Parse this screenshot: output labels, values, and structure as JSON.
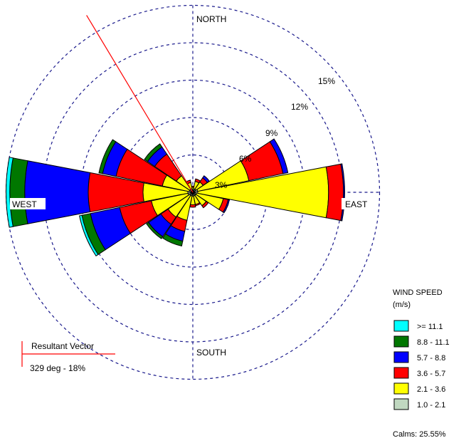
{
  "chart_data": {
    "type": "wind-rose",
    "directions": [
      {
        "bearing": 0,
        "cumulative": [
          0.2,
          0.4,
          0.5
        ]
      },
      {
        "bearing": 22.5,
        "cumulative": [
          0.3,
          0.9,
          1.1
        ]
      },
      {
        "bearing": 45,
        "cumulative": [
          0.3,
          1.0,
          1.4,
          1.6
        ]
      },
      {
        "bearing": 67.5,
        "cumulative": [
          0.4,
          4.6,
          7.4,
          7.8
        ]
      },
      {
        "bearing": 90,
        "cumulative": [
          0.4,
          10.9,
          12.1,
          12.2
        ]
      },
      {
        "bearing": 112.5,
        "cumulative": [
          0.3,
          2.5,
          2.9,
          3.0
        ]
      },
      {
        "bearing": 135,
        "cumulative": [
          0.3,
          1.3,
          1.5
        ]
      },
      {
        "bearing": 157.5,
        "cumulative": [
          0.3,
          1.0,
          1.1
        ]
      },
      {
        "bearing": 180,
        "cumulative": [
          0.3,
          1.0,
          1.2
        ]
      },
      {
        "bearing": 202.5,
        "cumulative": [
          0.3,
          2.3,
          3.2,
          4.0,
          4.4
        ]
      },
      {
        "bearing": 225,
        "cumulative": [
          0.3,
          2.4,
          3.1,
          4.3,
          4.5
        ]
      },
      {
        "bearing": 247.5,
        "cumulative": [
          0.4,
          3.4,
          6.0,
          8.4,
          9.1,
          9.3
        ]
      },
      {
        "bearing": 270,
        "cumulative": [
          0.4,
          4.0,
          8.4,
          13.5,
          14.7,
          15.0
        ]
      },
      {
        "bearing": 292.5,
        "cumulative": [
          0.3,
          2.5,
          6.3,
          7.4,
          7.7
        ]
      },
      {
        "bearing": 315,
        "cumulative": [
          0.3,
          1.6,
          3.7,
          4.4,
          4.7
        ]
      },
      {
        "bearing": 337.5,
        "cumulative": [
          0.3,
          0.8,
          1.0
        ]
      }
    ],
    "ring_labels": [
      "3%",
      "6%",
      "9%",
      "12%",
      "15%"
    ],
    "ring_values": [
      3,
      6,
      9,
      12,
      15
    ],
    "cardinals": {
      "north": "NORTH",
      "south": "SOUTH",
      "east": "EAST",
      "west": "WEST"
    },
    "resultant_vector": {
      "title": "Resultant Vector",
      "value": "329 deg - 18%",
      "bearing": 329
    },
    "legend": {
      "title_line1": "WIND SPEED",
      "title_line2": "(m/s)",
      "items": [
        {
          "label": ">= 11.1",
          "color": "#00ffff"
        },
        {
          "label": "8.8 - 11.1",
          "color": "#007700"
        },
        {
          "label": "5.7 - 8.8",
          "color": "#0000ff"
        },
        {
          "label": "3.6 - 5.7",
          "color": "#ff0000"
        },
        {
          "label": "2.1 - 3.6",
          "color": "#ffff00"
        },
        {
          "label": "1.0 - 2.1",
          "color": "#c0d8c0"
        }
      ],
      "calms": "Calms: 25.55%"
    },
    "bin_colors": [
      "#c0d8c0",
      "#ffff00",
      "#ff0000",
      "#0000ff",
      "#007700",
      "#00ffff"
    ]
  }
}
